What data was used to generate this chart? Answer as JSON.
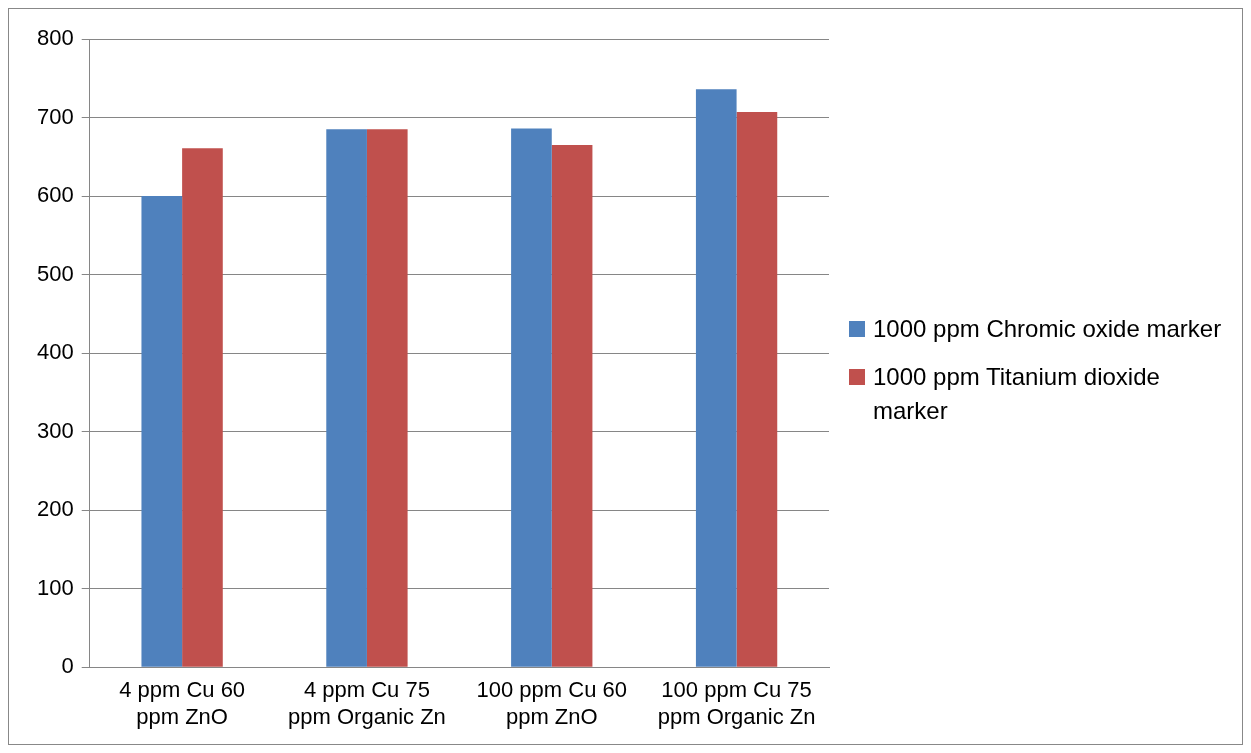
{
  "chart_data": {
    "type": "bar",
    "categories": [
      "4 ppm Cu 60 ppm ZnO",
      "4 ppm Cu 75 ppm Organic Zn",
      "100 ppm Cu 60 ppm ZnO",
      "100 ppm Cu 75 ppm Organic Zn"
    ],
    "series": [
      {
        "name": "1000 ppm Chromic oxide marker",
        "color": "#4f81bd",
        "values": [
          600,
          685,
          686,
          736
        ]
      },
      {
        "name": "1000 ppm Titanium dioxide marker",
        "color": "#c0504d",
        "values": [
          661,
          685,
          665,
          707
        ]
      }
    ],
    "ylim": [
      0,
      800
    ],
    "yticks": [
      0,
      100,
      200,
      300,
      400,
      500,
      600,
      700,
      800
    ],
    "grid": "y",
    "legend": "right"
  }
}
